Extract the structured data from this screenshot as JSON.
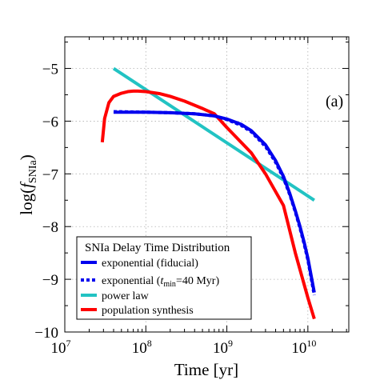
{
  "chart_data": {
    "type": "line",
    "xlabel": "Time [yr]",
    "ylabel_prefix": "log(",
    "ylabel_var": "f",
    "ylabel_sub": "SNIa",
    "ylabel_suffix": ")",
    "x_scale": "log",
    "xlim": [
      10000000.0,
      32000000000.0
    ],
    "ylim": [
      -10,
      -4.4
    ],
    "x_ticks": [
      {
        "base": "10",
        "exp": "7",
        "value": 10000000.0
      },
      {
        "base": "10",
        "exp": "8",
        "value": 100000000.0
      },
      {
        "base": "10",
        "exp": "9",
        "value": 1000000000.0
      },
      {
        "base": "10",
        "exp": "10",
        "value": 10000000000.0
      }
    ],
    "y_ticks": [
      {
        "label": "−5",
        "value": -5
      },
      {
        "label": "−6",
        "value": -6
      },
      {
        "label": "−7",
        "value": -7
      },
      {
        "label": "−8",
        "value": -8
      },
      {
        "label": "−9",
        "value": -9
      },
      {
        "label": "−10",
        "value": -10
      }
    ],
    "grid": true,
    "annotation": "(a)",
    "legend": {
      "title": "SNIa Delay Time Distribution",
      "placement": "lower-left"
    },
    "series": [
      {
        "name": "exponential (fiducial)",
        "color": "#0000ee",
        "style": "solid",
        "x": [
          40000000.0,
          100000000.0,
          200000000.0,
          400000000.0,
          700000000.0,
          1000000000.0,
          1500000000.0,
          2000000000.0,
          3000000000.0,
          4000000000.0,
          5000000000.0,
          6000000000.0,
          7000000000.0,
          8000000000.0,
          9000000000.0,
          10000000000.0,
          12000000000.0
        ],
        "y": [
          -5.83,
          -5.83,
          -5.84,
          -5.86,
          -5.9,
          -5.96,
          -6.06,
          -6.18,
          -6.45,
          -6.75,
          -7.05,
          -7.38,
          -7.7,
          -8.0,
          -8.3,
          -8.6,
          -9.25
        ]
      },
      {
        "name_prefix": "exponential (",
        "name_var": "t",
        "name_sub": "min",
        "name_suffix": "=40 Myr)",
        "color": "#0000ee",
        "style": "dotted",
        "x": [
          40000000.0,
          100000000.0,
          200000000.0,
          400000000.0,
          700000000.0,
          1000000000.0,
          1500000000.0,
          2000000000.0,
          3000000000.0,
          4000000000.0,
          5000000000.0,
          6000000000.0,
          7000000000.0,
          8000000000.0,
          9000000000.0,
          10000000000.0,
          12000000000.0
        ],
        "y": [
          -5.82,
          -5.83,
          -5.84,
          -5.86,
          -5.9,
          -5.97,
          -6.08,
          -6.2,
          -6.48,
          -6.78,
          -7.08,
          -7.4,
          -7.72,
          -8.03,
          -8.33,
          -8.63,
          -9.3
        ]
      },
      {
        "name": "power law",
        "color": "#22c3c3",
        "style": "solid",
        "x": [
          40000000.0,
          12000000000.0
        ],
        "y": [
          -5.0,
          -7.5
        ]
      },
      {
        "name": "population synthesis",
        "color": "#ff0000",
        "style": "solid",
        "x": [
          29000000.0,
          31000000.0,
          35000000.0,
          40000000.0,
          50000000.0,
          60000000.0,
          70000000.0,
          80000000.0,
          100000000.0,
          150000000.0,
          200000000.0,
          300000000.0,
          500000000.0,
          700000000.0,
          1000000000.0,
          2000000000.0,
          3000000000.0,
          5000000000.0,
          7000000000.0,
          10000000000.0,
          12000000000.0
        ],
        "y": [
          -6.4,
          -5.95,
          -5.65,
          -5.53,
          -5.47,
          -5.44,
          -5.43,
          -5.43,
          -5.44,
          -5.48,
          -5.53,
          -5.62,
          -5.76,
          -5.86,
          -6.12,
          -6.6,
          -7.0,
          -7.6,
          -8.5,
          -9.35,
          -9.75
        ]
      }
    ]
  }
}
